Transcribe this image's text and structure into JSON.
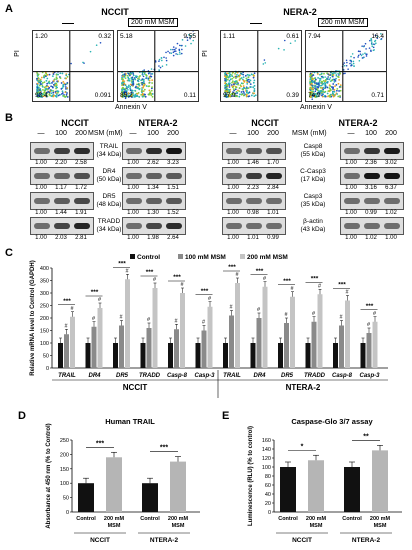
{
  "panelA": {
    "letter": "A",
    "titles": [
      "NCCIT",
      "NERA-2"
    ],
    "tag_control": "",
    "tag_treat": "200 mM MSM",
    "y_label": "PI",
    "x_label": "Annexin V",
    "plots": [
      {
        "q": [
          "1.20",
          "0.32",
          "98.4",
          "0.091"
        ]
      },
      {
        "q": [
          "5.18",
          "9.55",
          "85.2",
          "0.11"
        ]
      },
      {
        "q": [
          "1.11",
          "0.61",
          "97.9",
          "0.39"
        ]
      },
      {
        "q": [
          "7.94",
          "16.4",
          "74.9",
          "0.71"
        ]
      }
    ]
  },
  "panelB": {
    "letter": "B",
    "titles": [
      "NCCIT",
      "NTERA-2",
      "NCCIT",
      "NTERA-2"
    ],
    "msm_header": "MSM (mM)",
    "lanes": [
      "—",
      "100",
      "200"
    ],
    "left_labels": [
      {
        "name": "TRAIL",
        "kda": "(34 kDa)"
      },
      {
        "name": "DR4",
        "kda": "(50 kDa)"
      },
      {
        "name": "DR5",
        "kda": "(48 kDa)"
      },
      {
        "name": "TRADD",
        "kda": "(34 kDa)"
      }
    ],
    "right_labels": [
      {
        "name": "Casp8",
        "kda": "(55 kDa)"
      },
      {
        "name": "C-Casp3",
        "kda": "(17 kDa)"
      },
      {
        "name": "Casp3",
        "kda": "(35 kDa)"
      },
      {
        "name": "β-actin",
        "kda": "(43 kDa)"
      }
    ],
    "left_nccit": [
      [
        "1.00",
        "2.20",
        "2.58"
      ],
      [
        "1.00",
        "1.17",
        "1.72"
      ],
      [
        "1.00",
        "1.44",
        "1.91"
      ],
      [
        "1.00",
        "2.03",
        "2.81"
      ]
    ],
    "left_ntera": [
      [
        "1.00",
        "2.62",
        "3.23"
      ],
      [
        "1.00",
        "1.34",
        "1.51"
      ],
      [
        "1.00",
        "1.30",
        "1.52"
      ],
      [
        "1.00",
        "1.98",
        "2.64"
      ]
    ],
    "right_nccit": [
      [
        "1.00",
        "1.46",
        "1.70"
      ],
      [
        "1.00",
        "2.23",
        "2.84"
      ],
      [
        "1.00",
        "0.98",
        "1.01"
      ],
      [
        "1.00",
        "1.01",
        "0.99"
      ]
    ],
    "right_ntera": [
      [
        "1.00",
        "2.36",
        "3.02"
      ],
      [
        "1.00",
        "3.16",
        "6.37"
      ],
      [
        "1.00",
        "0.99",
        "1.02"
      ],
      [
        "1.00",
        "1.02",
        "1.00"
      ]
    ]
  },
  "panelC": {
    "letter": "C",
    "group_labels": [
      "NCCIT",
      "NTERA-2"
    ],
    "sig": "***",
    "hash": "#",
    "chart_data": {
      "type": "bar",
      "categories": [
        "TRAIL",
        "DR4",
        "DR5",
        "TRADD",
        "Casp-8",
        "Casp-3",
        "TRAIL",
        "DR4",
        "DR5",
        "TRADD",
        "Casp-8",
        "Casp-3"
      ],
      "series": [
        {
          "name": "Control",
          "color": "#111111",
          "values": [
            100,
            100,
            100,
            100,
            100,
            100,
            100,
            100,
            100,
            100,
            100,
            100
          ]
        },
        {
          "name": "100 mM MSM",
          "color": "#8a8a8a",
          "values": [
            135,
            165,
            170,
            160,
            155,
            150,
            210,
            200,
            180,
            185,
            170,
            140
          ]
        },
        {
          "name": "200 mM MSM",
          "color": "#c4c4c4",
          "values": [
            205,
            240,
            355,
            320,
            300,
            245,
            340,
            325,
            285,
            295,
            270,
            185
          ]
        }
      ],
      "ylabel": "Relative mRNA level to Control (GAPDH)",
      "ylim": [
        0,
        400
      ],
      "yticks": [
        0,
        50,
        100,
        150,
        200,
        250,
        300,
        350,
        400
      ]
    }
  },
  "panelD": {
    "letter": "D",
    "title": "Human TRAIL",
    "sig": "***",
    "chart_data": {
      "type": "bar",
      "groups": [
        "NCCIT",
        "NTERA-2"
      ],
      "categories": [
        "Control",
        "200 mM MSM",
        "Control",
        "200 mM MSM"
      ],
      "values": [
        100,
        190,
        100,
        175
      ],
      "colors": [
        "#111111",
        "#b5b5b5",
        "#111111",
        "#b5b5b5"
      ],
      "ylabel": "Absorbance at 450 nm (% to Control)",
      "ylim": [
        0,
        250
      ],
      "yticks": [
        0,
        50,
        100,
        150,
        200,
        250
      ]
    }
  },
  "panelE": {
    "letter": "E",
    "title": "Caspase-Glo 3/7 assay",
    "sig": [
      "*",
      "**"
    ],
    "chart_data": {
      "type": "bar",
      "groups": [
        "NCCIT",
        "NTERA-2"
      ],
      "categories": [
        "Control",
        "200 mM MSM",
        "Control",
        "200 mM MSM"
      ],
      "values": [
        100,
        115,
        100,
        137
      ],
      "colors": [
        "#111111",
        "#b5b5b5",
        "#111111",
        "#b5b5b5"
      ],
      "ylabel": "Luminescence (RLU) (% to control)",
      "ylim": [
        0,
        160
      ],
      "yticks": [
        0,
        20,
        40,
        60,
        80,
        100,
        120,
        140,
        160
      ]
    }
  }
}
